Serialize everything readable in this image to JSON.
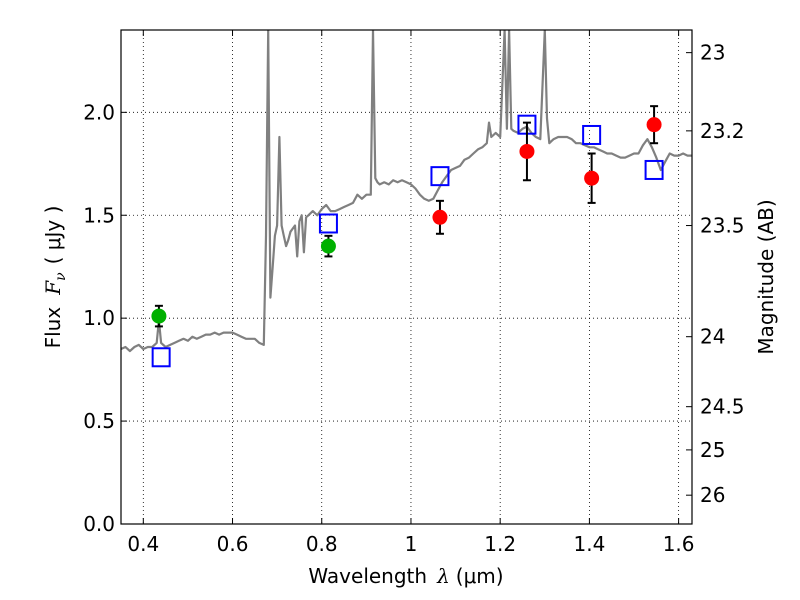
{
  "chart_data": {
    "type": "scatter",
    "title": "",
    "xlabel_prefix": "Wavelength",
    "xlabel_symbol": "λ",
    "xlabel_unit": "(μm)",
    "ylabel_prefix": "Flux",
    "ylabel_symbol": "F",
    "ylabel_subscript": "ν",
    "ylabel_unit": "( μJy )",
    "y2label": "Magnitude (AB)",
    "xlim": [
      0.35,
      1.63
    ],
    "ylim": [
      0.0,
      2.4
    ],
    "grid": true,
    "x_ticks": [
      0.4,
      0.6,
      0.8,
      1.0,
      1.2,
      1.4,
      1.6
    ],
    "x_tick_labels": [
      "0.4",
      "0.6",
      "0.8",
      "1",
      "1.2",
      "1.4",
      "1.6"
    ],
    "y_ticks": [
      0.0,
      0.5,
      1.0,
      1.5,
      2.0
    ],
    "y_tick_labels": [
      "0.0",
      "0.5",
      "1.0",
      "1.5",
      "2.0"
    ],
    "y2_ticks": [
      {
        "label": "23",
        "flux": 2.29
      },
      {
        "label": "23.2",
        "flux": 1.91
      },
      {
        "label": "23.5",
        "flux": 1.45
      },
      {
        "label": "24",
        "flux": 0.91
      },
      {
        "label": "24.5",
        "flux": 0.57
      },
      {
        "label": "25",
        "flux": 0.36
      },
      {
        "label": "26",
        "flux": 0.14
      }
    ],
    "colors": {
      "sed": "#808080",
      "model_box": "#0000ff",
      "green_obs": "#00b000",
      "red_obs": "#ff0000",
      "errorbar": "#000000"
    },
    "series": [
      {
        "name": "model-sed",
        "style": "line",
        "x": [
          0.35,
          0.36,
          0.37,
          0.38,
          0.39,
          0.4,
          0.41,
          0.42,
          0.43,
          0.435,
          0.44,
          0.45,
          0.46,
          0.47,
          0.48,
          0.49,
          0.5,
          0.51,
          0.52,
          0.53,
          0.54,
          0.55,
          0.56,
          0.57,
          0.58,
          0.59,
          0.6,
          0.61,
          0.62,
          0.63,
          0.64,
          0.65,
          0.66,
          0.67,
          0.675,
          0.68,
          0.685,
          0.69,
          0.695,
          0.7,
          0.705,
          0.71,
          0.715,
          0.72,
          0.725,
          0.73,
          0.74,
          0.745,
          0.75,
          0.755,
          0.76,
          0.765,
          0.77,
          0.78,
          0.79,
          0.8,
          0.81,
          0.82,
          0.83,
          0.84,
          0.85,
          0.86,
          0.87,
          0.88,
          0.89,
          0.9,
          0.91,
          0.915,
          0.92,
          0.925,
          0.93,
          0.94,
          0.95,
          0.96,
          0.97,
          0.98,
          0.99,
          1.0,
          1.01,
          1.02,
          1.03,
          1.04,
          1.05,
          1.06,
          1.07,
          1.08,
          1.09,
          1.1,
          1.11,
          1.12,
          1.13,
          1.14,
          1.15,
          1.16,
          1.17,
          1.175,
          1.18,
          1.19,
          1.2,
          1.21,
          1.215,
          1.22,
          1.225,
          1.23,
          1.24,
          1.25,
          1.26,
          1.27,
          1.28,
          1.29,
          1.3,
          1.305,
          1.31,
          1.315,
          1.32,
          1.33,
          1.34,
          1.35,
          1.36,
          1.37,
          1.38,
          1.39,
          1.4,
          1.41,
          1.42,
          1.43,
          1.44,
          1.45,
          1.46,
          1.47,
          1.48,
          1.49,
          1.5,
          1.51,
          1.52,
          1.53,
          1.54,
          1.55,
          1.56,
          1.57,
          1.58,
          1.59,
          1.6,
          1.61,
          1.62,
          1.63
        ],
        "y": [
          0.85,
          0.86,
          0.84,
          0.86,
          0.87,
          0.85,
          0.86,
          0.86,
          0.88,
          0.99,
          0.88,
          0.86,
          0.87,
          0.88,
          0.89,
          0.9,
          0.89,
          0.91,
          0.9,
          0.91,
          0.92,
          0.92,
          0.93,
          0.92,
          0.93,
          0.93,
          0.93,
          0.92,
          0.91,
          0.9,
          0.9,
          0.9,
          0.88,
          0.87,
          1.4,
          2.4,
          1.1,
          1.25,
          1.4,
          1.45,
          1.88,
          1.45,
          1.4,
          1.35,
          1.38,
          1.42,
          1.45,
          1.3,
          1.47,
          1.5,
          1.32,
          1.49,
          1.5,
          1.52,
          1.5,
          1.53,
          1.55,
          1.52,
          1.52,
          1.53,
          1.54,
          1.55,
          1.56,
          1.6,
          1.58,
          1.6,
          1.6,
          2.4,
          1.68,
          1.66,
          1.65,
          1.66,
          1.65,
          1.67,
          1.66,
          1.67,
          1.66,
          1.65,
          1.63,
          1.6,
          1.58,
          1.57,
          1.58,
          1.62,
          1.66,
          1.69,
          1.72,
          1.73,
          1.74,
          1.77,
          1.78,
          1.8,
          1.82,
          1.83,
          1.85,
          1.95,
          1.88,
          1.9,
          1.88,
          2.4,
          1.92,
          2.4,
          1.92,
          1.91,
          1.9,
          1.92,
          1.93,
          1.9,
          1.88,
          1.87,
          2.4,
          1.97,
          1.85,
          1.86,
          1.87,
          1.88,
          1.88,
          1.88,
          1.87,
          1.85,
          1.85,
          1.84,
          1.83,
          1.83,
          1.82,
          1.81,
          1.8,
          1.8,
          1.79,
          1.78,
          1.78,
          1.79,
          1.8,
          1.8,
          1.84,
          1.87,
          1.83,
          1.78,
          1.72,
          1.76,
          1.8,
          1.79,
          1.79,
          1.8,
          1.79,
          1.79
        ]
      },
      {
        "name": "model-photometry",
        "style": "open-square",
        "x": [
          0.44,
          0.815,
          1.065,
          1.26,
          1.405,
          1.545
        ],
        "y": [
          0.81,
          1.46,
          1.69,
          1.94,
          1.89,
          1.72
        ]
      },
      {
        "name": "observed-green",
        "style": "filled-circle",
        "x": [
          0.435,
          0.815
        ],
        "y": [
          1.01,
          1.35
        ],
        "yerr": [
          0.05,
          0.05
        ]
      },
      {
        "name": "observed-red",
        "style": "filled-circle",
        "x": [
          1.065,
          1.26,
          1.405,
          1.545
        ],
        "y": [
          1.49,
          1.81,
          1.68,
          1.94
        ],
        "yerr": [
          0.08,
          0.14,
          0.12,
          0.09
        ]
      }
    ]
  }
}
